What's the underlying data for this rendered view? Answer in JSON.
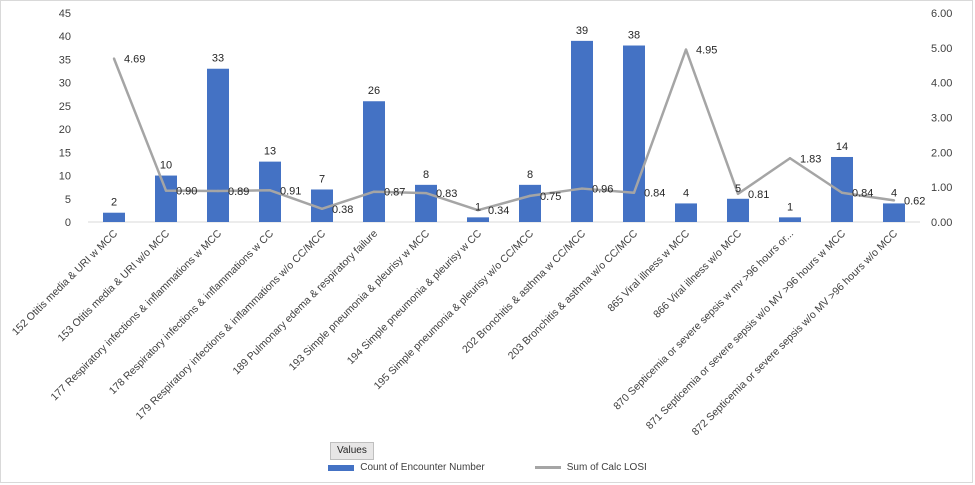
{
  "chart_data": {
    "type": "bar+line",
    "categories": [
      "152 Otitis media & URI w MCC",
      "153 Otitis media & URI w/o MCC",
      "177 Respiratory infections & inflammations w MCC",
      "178 Respiratory infections & inflammations w CC",
      "179 Respiratory infections & inflammations w/o CC/MCC",
      "189 Pulmonary edema & respiratory failure",
      "193 Simple pneumonia & pleurisy w MCC",
      "194 Simple pneumonia & pleurisy w CC",
      "195 Simple pneumonia & pleurisy w/o CC/MCC",
      "202 Bronchitis & asthma w CC/MCC",
      "203 Bronchitis & asthma w/o CC/MCC",
      "865 Viral illness w MCC",
      "866 Viral illness w/o MCC",
      "870 Septicemia or severe sepsis w mv >96 hours or...",
      "871 Septicemia or severe sepsis w/o MV >96 hours w MCC",
      "872 Septicemia or severe sepsis w/o MV >96 hours w/o MCC"
    ],
    "series": [
      {
        "name": "Count of Encounter Number",
        "kind": "bar",
        "axis": "left",
        "values": [
          2,
          10,
          33,
          13,
          7,
          26,
          8,
          1,
          8,
          39,
          38,
          4,
          5,
          1,
          14,
          4
        ],
        "labels": [
          "2",
          "10",
          "33",
          "13",
          "7",
          "26",
          "8",
          "1",
          "8",
          "39",
          "38",
          "4",
          "5",
          "1",
          "14",
          "4"
        ]
      },
      {
        "name": "Sum of Calc LOSI",
        "kind": "line",
        "axis": "right",
        "values": [
          4.69,
          0.9,
          0.89,
          0.91,
          0.38,
          0.87,
          0.83,
          0.34,
          0.75,
          0.96,
          0.84,
          4.95,
          0.81,
          1.83,
          0.84,
          0.62
        ],
        "labels": [
          "4.69",
          "0.90",
          "0.89",
          "0.91",
          "0.38",
          "0.87",
          "0.83",
          "0.34",
          "0.75",
          "0.96",
          "0.84",
          "4.95",
          "0.81",
          "1.83",
          "0.84",
          "0.62"
        ]
      }
    ],
    "y_left": {
      "min": 0,
      "max": 45,
      "ticks": [
        "0",
        "5",
        "10",
        "15",
        "20",
        "25",
        "30",
        "35",
        "40",
        "45"
      ]
    },
    "y_right": {
      "min": 0,
      "max": 6,
      "ticks": [
        "0.00",
        "1.00",
        "2.00",
        "3.00",
        "4.00",
        "5.00",
        "6.00"
      ]
    },
    "grid": false,
    "legend_position": "bottom",
    "colors": {
      "bar": "#4472c4",
      "line": "#a5a5a5"
    }
  },
  "field_button": {
    "label": "Values"
  }
}
